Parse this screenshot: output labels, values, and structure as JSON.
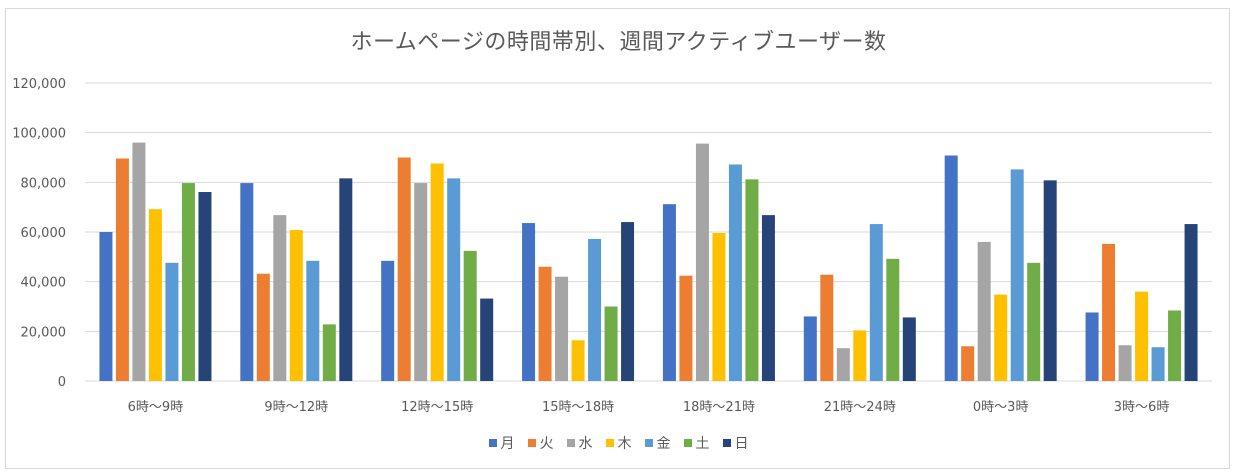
{
  "chart_data": {
    "type": "bar",
    "title": "ホームページの時間帯別、週間アクティブユーザー数",
    "xlabel": "",
    "ylabel": "",
    "ylim": [
      0,
      120000
    ],
    "yticks": [
      "0",
      "20,000",
      "40,000",
      "60,000",
      "80,000",
      "100,000",
      "120,000"
    ],
    "ytick_values": [
      0,
      20000,
      40000,
      60000,
      80000,
      100000,
      120000
    ],
    "grid": true,
    "legend_position": "bottom",
    "categories": [
      "6時〜9時",
      "9時〜12時",
      "12時〜15時",
      "15時〜18時",
      "18時〜21時",
      "21時〜24時",
      "0時〜3時",
      "3時〜6時"
    ],
    "series": [
      {
        "name": "月",
        "color": "#4472c4",
        "values": [
          60000,
          79700,
          48400,
          63600,
          71200,
          26000,
          90800,
          27600
        ]
      },
      {
        "name": "火",
        "color": "#ed7d31",
        "values": [
          89600,
          43200,
          90000,
          46000,
          42400,
          42800,
          14000,
          55200
        ]
      },
      {
        "name": "水",
        "color": "#a5a5a5",
        "values": [
          96000,
          66800,
          79700,
          42000,
          95600,
          13200,
          56000,
          14400
        ]
      },
      {
        "name": "木",
        "color": "#ffc000",
        "values": [
          69200,
          60800,
          87600,
          16400,
          59600,
          20400,
          34800,
          36000
        ]
      },
      {
        "name": "金",
        "color": "#5b9bd5",
        "values": [
          47600,
          48400,
          81600,
          57200,
          87200,
          63200,
          85200,
          13600
        ]
      },
      {
        "name": "土",
        "color": "#70ad47",
        "values": [
          79700,
          22800,
          52400,
          30000,
          81200,
          49200,
          47600,
          28400
        ]
      },
      {
        "name": "日",
        "color": "#264478",
        "values": [
          76100,
          81600,
          33200,
          64000,
          66800,
          25600,
          80800,
          63200
        ]
      }
    ]
  }
}
